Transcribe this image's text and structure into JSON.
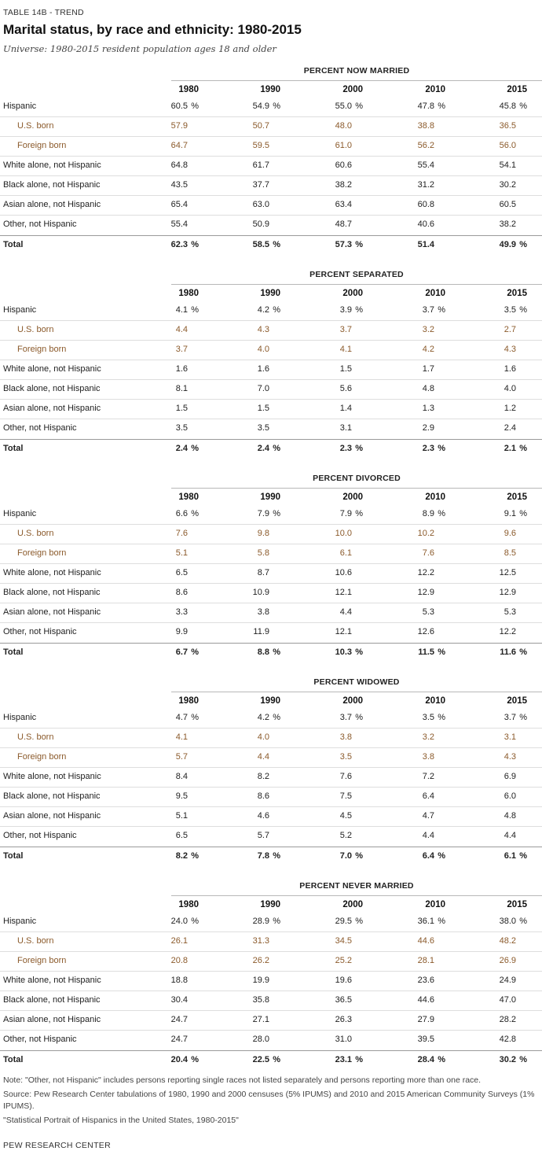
{
  "header": {
    "tag": "TABLE 14B - TREND",
    "title": "Marital status, by race and ethnicity: 1980-2015",
    "subtitle": "Universe: 1980-2015 resident population ages 18 and older"
  },
  "years": [
    "1980",
    "1990",
    "2000",
    "2010",
    "2015"
  ],
  "sections": [
    {
      "title": "PERCENT NOW MARRIED",
      "rows": [
        {
          "label": "Hispanic",
          "values": [
            "60.5",
            "54.9",
            "55.0",
            "47.8",
            "45.8"
          ],
          "pct": true
        },
        {
          "label": "U.S. born",
          "values": [
            "57.9",
            "50.7",
            "48.0",
            "38.8",
            "36.5"
          ],
          "sub": true
        },
        {
          "label": "Foreign born",
          "values": [
            "64.7",
            "59.5",
            "61.0",
            "56.2",
            "56.0"
          ],
          "sub": true
        },
        {
          "label": "White alone, not Hispanic",
          "values": [
            "64.8",
            "61.7",
            "60.6",
            "55.4",
            "54.1"
          ]
        },
        {
          "label": "Black alone, not Hispanic",
          "values": [
            "43.5",
            "37.7",
            "38.2",
            "31.2",
            "30.2"
          ]
        },
        {
          "label": "Asian alone, not Hispanic",
          "values": [
            "65.4",
            "63.0",
            "63.4",
            "60.8",
            "60.5"
          ]
        },
        {
          "label": "Other, not Hispanic",
          "values": [
            "55.4",
            "50.9",
            "48.7",
            "40.6",
            "38.2"
          ]
        },
        {
          "label": "Total",
          "values": [
            "62.3",
            "58.5",
            "57.3",
            "51.4",
            "49.9"
          ],
          "total": true,
          "pct_mask": [
            true,
            true,
            true,
            false,
            true
          ]
        }
      ]
    },
    {
      "title": "PERCENT SEPARATED",
      "rows": [
        {
          "label": "Hispanic",
          "values": [
            "4.1",
            "4.2",
            "3.9",
            "3.7",
            "3.5"
          ],
          "pct": true
        },
        {
          "label": "U.S. born",
          "values": [
            "4.4",
            "4.3",
            "3.7",
            "3.2",
            "2.7"
          ],
          "sub": true
        },
        {
          "label": "Foreign born",
          "values": [
            "3.7",
            "4.0",
            "4.1",
            "4.2",
            "4.3"
          ],
          "sub": true
        },
        {
          "label": "White alone, not Hispanic",
          "values": [
            "1.6",
            "1.6",
            "1.5",
            "1.7",
            "1.6"
          ]
        },
        {
          "label": "Black alone, not Hispanic",
          "values": [
            "8.1",
            "7.0",
            "5.6",
            "4.8",
            "4.0"
          ]
        },
        {
          "label": "Asian alone, not Hispanic",
          "values": [
            "1.5",
            "1.5",
            "1.4",
            "1.3",
            "1.2"
          ]
        },
        {
          "label": "Other, not Hispanic",
          "values": [
            "3.5",
            "3.5",
            "3.1",
            "2.9",
            "2.4"
          ]
        },
        {
          "label": "Total",
          "values": [
            "2.4",
            "2.4",
            "2.3",
            "2.3",
            "2.1"
          ],
          "total": true,
          "pct": true
        }
      ]
    },
    {
      "title": "PERCENT DIVORCED",
      "rows": [
        {
          "label": "Hispanic",
          "values": [
            "6.6",
            "7.9",
            "7.9",
            "8.9",
            "9.1"
          ],
          "pct": true
        },
        {
          "label": "U.S. born",
          "values": [
            "7.6",
            "9.8",
            "10.0",
            "10.2",
            "9.6"
          ],
          "sub": true
        },
        {
          "label": "Foreign born",
          "values": [
            "5.1",
            "5.8",
            "6.1",
            "7.6",
            "8.5"
          ],
          "sub": true
        },
        {
          "label": "White alone, not Hispanic",
          "values": [
            "6.5",
            "8.7",
            "10.6",
            "12.2",
            "12.5"
          ]
        },
        {
          "label": "Black alone, not Hispanic",
          "values": [
            "8.6",
            "10.9",
            "12.1",
            "12.9",
            "12.9"
          ]
        },
        {
          "label": "Asian alone, not Hispanic",
          "values": [
            "3.3",
            "3.8",
            "4.4",
            "5.3",
            "5.3"
          ]
        },
        {
          "label": "Other, not Hispanic",
          "values": [
            "9.9",
            "11.9",
            "12.1",
            "12.6",
            "12.2"
          ]
        },
        {
          "label": "Total",
          "values": [
            "6.7",
            "8.8",
            "10.3",
            "11.5",
            "11.6"
          ],
          "total": true,
          "pct": true
        }
      ]
    },
    {
      "title": "PERCENT WIDOWED",
      "rows": [
        {
          "label": "Hispanic",
          "values": [
            "4.7",
            "4.2",
            "3.7",
            "3.5",
            "3.7"
          ],
          "pct": true
        },
        {
          "label": "U.S. born",
          "values": [
            "4.1",
            "4.0",
            "3.8",
            "3.2",
            "3.1"
          ],
          "sub": true
        },
        {
          "label": "Foreign born",
          "values": [
            "5.7",
            "4.4",
            "3.5",
            "3.8",
            "4.3"
          ],
          "sub": true
        },
        {
          "label": "White alone, not Hispanic",
          "values": [
            "8.4",
            "8.2",
            "7.6",
            "7.2",
            "6.9"
          ]
        },
        {
          "label": "Black alone, not Hispanic",
          "values": [
            "9.5",
            "8.6",
            "7.5",
            "6.4",
            "6.0"
          ]
        },
        {
          "label": "Asian alone, not Hispanic",
          "values": [
            "5.1",
            "4.6",
            "4.5",
            "4.7",
            "4.8"
          ]
        },
        {
          "label": "Other, not Hispanic",
          "values": [
            "6.5",
            "5.7",
            "5.2",
            "4.4",
            "4.4"
          ]
        },
        {
          "label": "Total",
          "values": [
            "8.2",
            "7.8",
            "7.0",
            "6.4",
            "6.1"
          ],
          "total": true,
          "pct": true
        }
      ]
    },
    {
      "title": "PERCENT NEVER MARRIED",
      "rows": [
        {
          "label": "Hispanic",
          "values": [
            "24.0",
            "28.9",
            "29.5",
            "36.1",
            "38.0"
          ],
          "pct": true
        },
        {
          "label": "U.S. born",
          "values": [
            "26.1",
            "31.3",
            "34.5",
            "44.6",
            "48.2"
          ],
          "sub": true
        },
        {
          "label": "Foreign born",
          "values": [
            "20.8",
            "26.2",
            "25.2",
            "28.1",
            "26.9"
          ],
          "sub": true
        },
        {
          "label": "White alone, not Hispanic",
          "values": [
            "18.8",
            "19.9",
            "19.6",
            "23.6",
            "24.9"
          ]
        },
        {
          "label": "Black alone, not Hispanic",
          "values": [
            "30.4",
            "35.8",
            "36.5",
            "44.6",
            "47.0"
          ]
        },
        {
          "label": "Asian alone, not Hispanic",
          "values": [
            "24.7",
            "27.1",
            "26.3",
            "27.9",
            "28.2"
          ]
        },
        {
          "label": "Other, not Hispanic",
          "values": [
            "24.7",
            "28.0",
            "31.0",
            "39.5",
            "42.8"
          ]
        },
        {
          "label": "Total",
          "values": [
            "20.4",
            "22.5",
            "23.1",
            "28.4",
            "30.2"
          ],
          "total": true,
          "pct": true
        }
      ]
    }
  ],
  "pct_sign": "%",
  "footer": {
    "note": "Note: \"Other, not Hispanic\" includes persons reporting single races not listed separately and persons reporting more than one race.",
    "source": "Source: Pew Research Center tabulations of 1980, 1990 and 2000 censuses (5% IPUMS) and 2010 and 2015 American Community Surveys (1% IPUMS).",
    "report": "\"Statistical Portrait of Hispanics in the United States, 1980-2015\"",
    "brand": "PEW RESEARCH CENTER"
  },
  "colors": {
    "subgroup_text": "#8b5a2b",
    "rule": "#b8b8b8"
  }
}
